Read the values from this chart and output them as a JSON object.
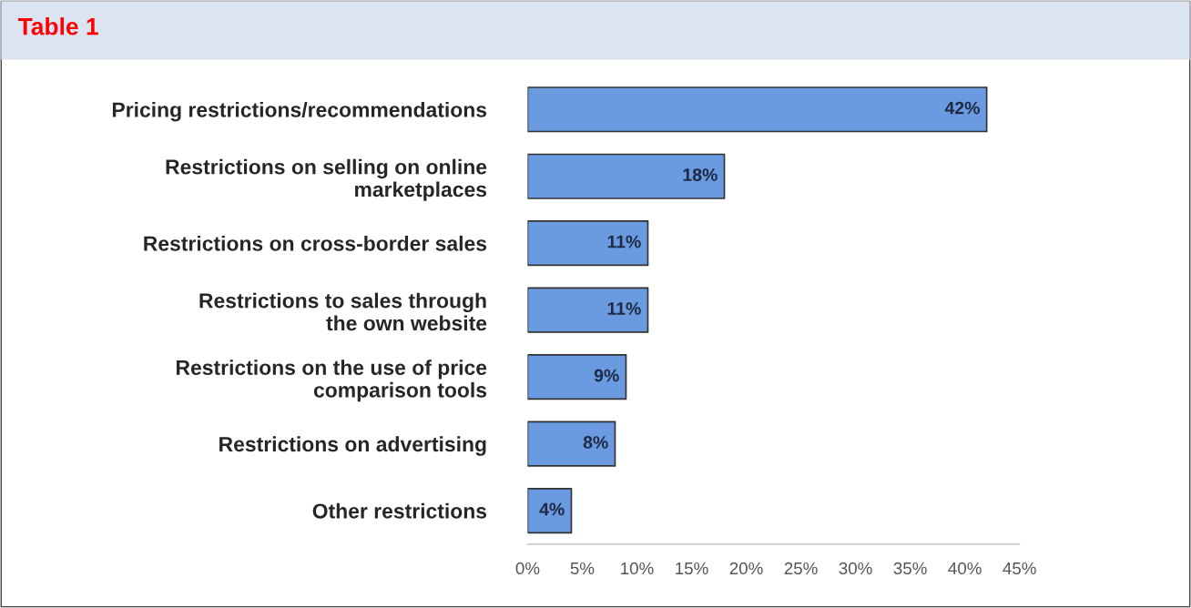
{
  "chart_data": {
    "type": "bar",
    "orientation": "horizontal",
    "title": "Table 1",
    "categories": [
      "Pricing restrictions/recommendations",
      "Restrictions on selling on online\nmarketplaces",
      "Restrictions on cross-border sales",
      "Restrictions to sales through\nthe own website",
      "Restrictions on the use of price\ncomparison tools",
      "Restrictions on advertising",
      "Other restrictions"
    ],
    "values": [
      42,
      18,
      11,
      11,
      9,
      8,
      4
    ],
    "value_labels": [
      "42%",
      "18%",
      "11%",
      "11%",
      "9%",
      "8%",
      "4%"
    ],
    "color": "#6a9ae0",
    "xlim": [
      0,
      45
    ],
    "xticks": [
      {
        "value": 0,
        "label": "0%"
      },
      {
        "value": 5,
        "label": "5%"
      },
      {
        "value": 10,
        "label": "10%"
      },
      {
        "value": 15,
        "label": "15%"
      },
      {
        "value": 20,
        "label": "20%"
      },
      {
        "value": 25,
        "label": "25%"
      },
      {
        "value": 30,
        "label": "30%"
      },
      {
        "value": 35,
        "label": "35%"
      },
      {
        "value": 40,
        "label": "40%"
      },
      {
        "value": 45,
        "label": "45%"
      }
    ],
    "grid": false,
    "legend": false
  }
}
